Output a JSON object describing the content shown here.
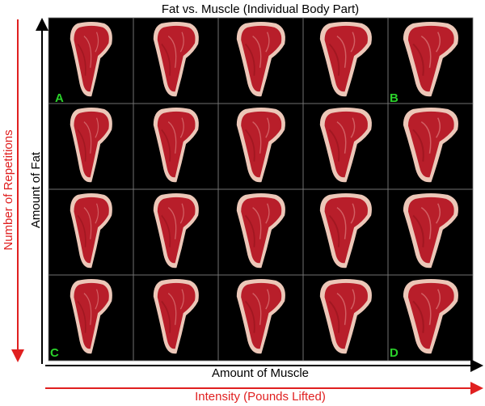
{
  "title": "Fat vs. Muscle (Individual Body Part)",
  "y_axis_label": "Amount of Fat",
  "x_axis_label": "Amount of Muscle",
  "outer_y_label": "Number of Repetitions",
  "outer_x_label": "Intensity (Pounds Lifted)",
  "corner_labels": {
    "top_left": "A",
    "top_right": "B",
    "bottom_left": "C",
    "bottom_right": "D"
  }
}
